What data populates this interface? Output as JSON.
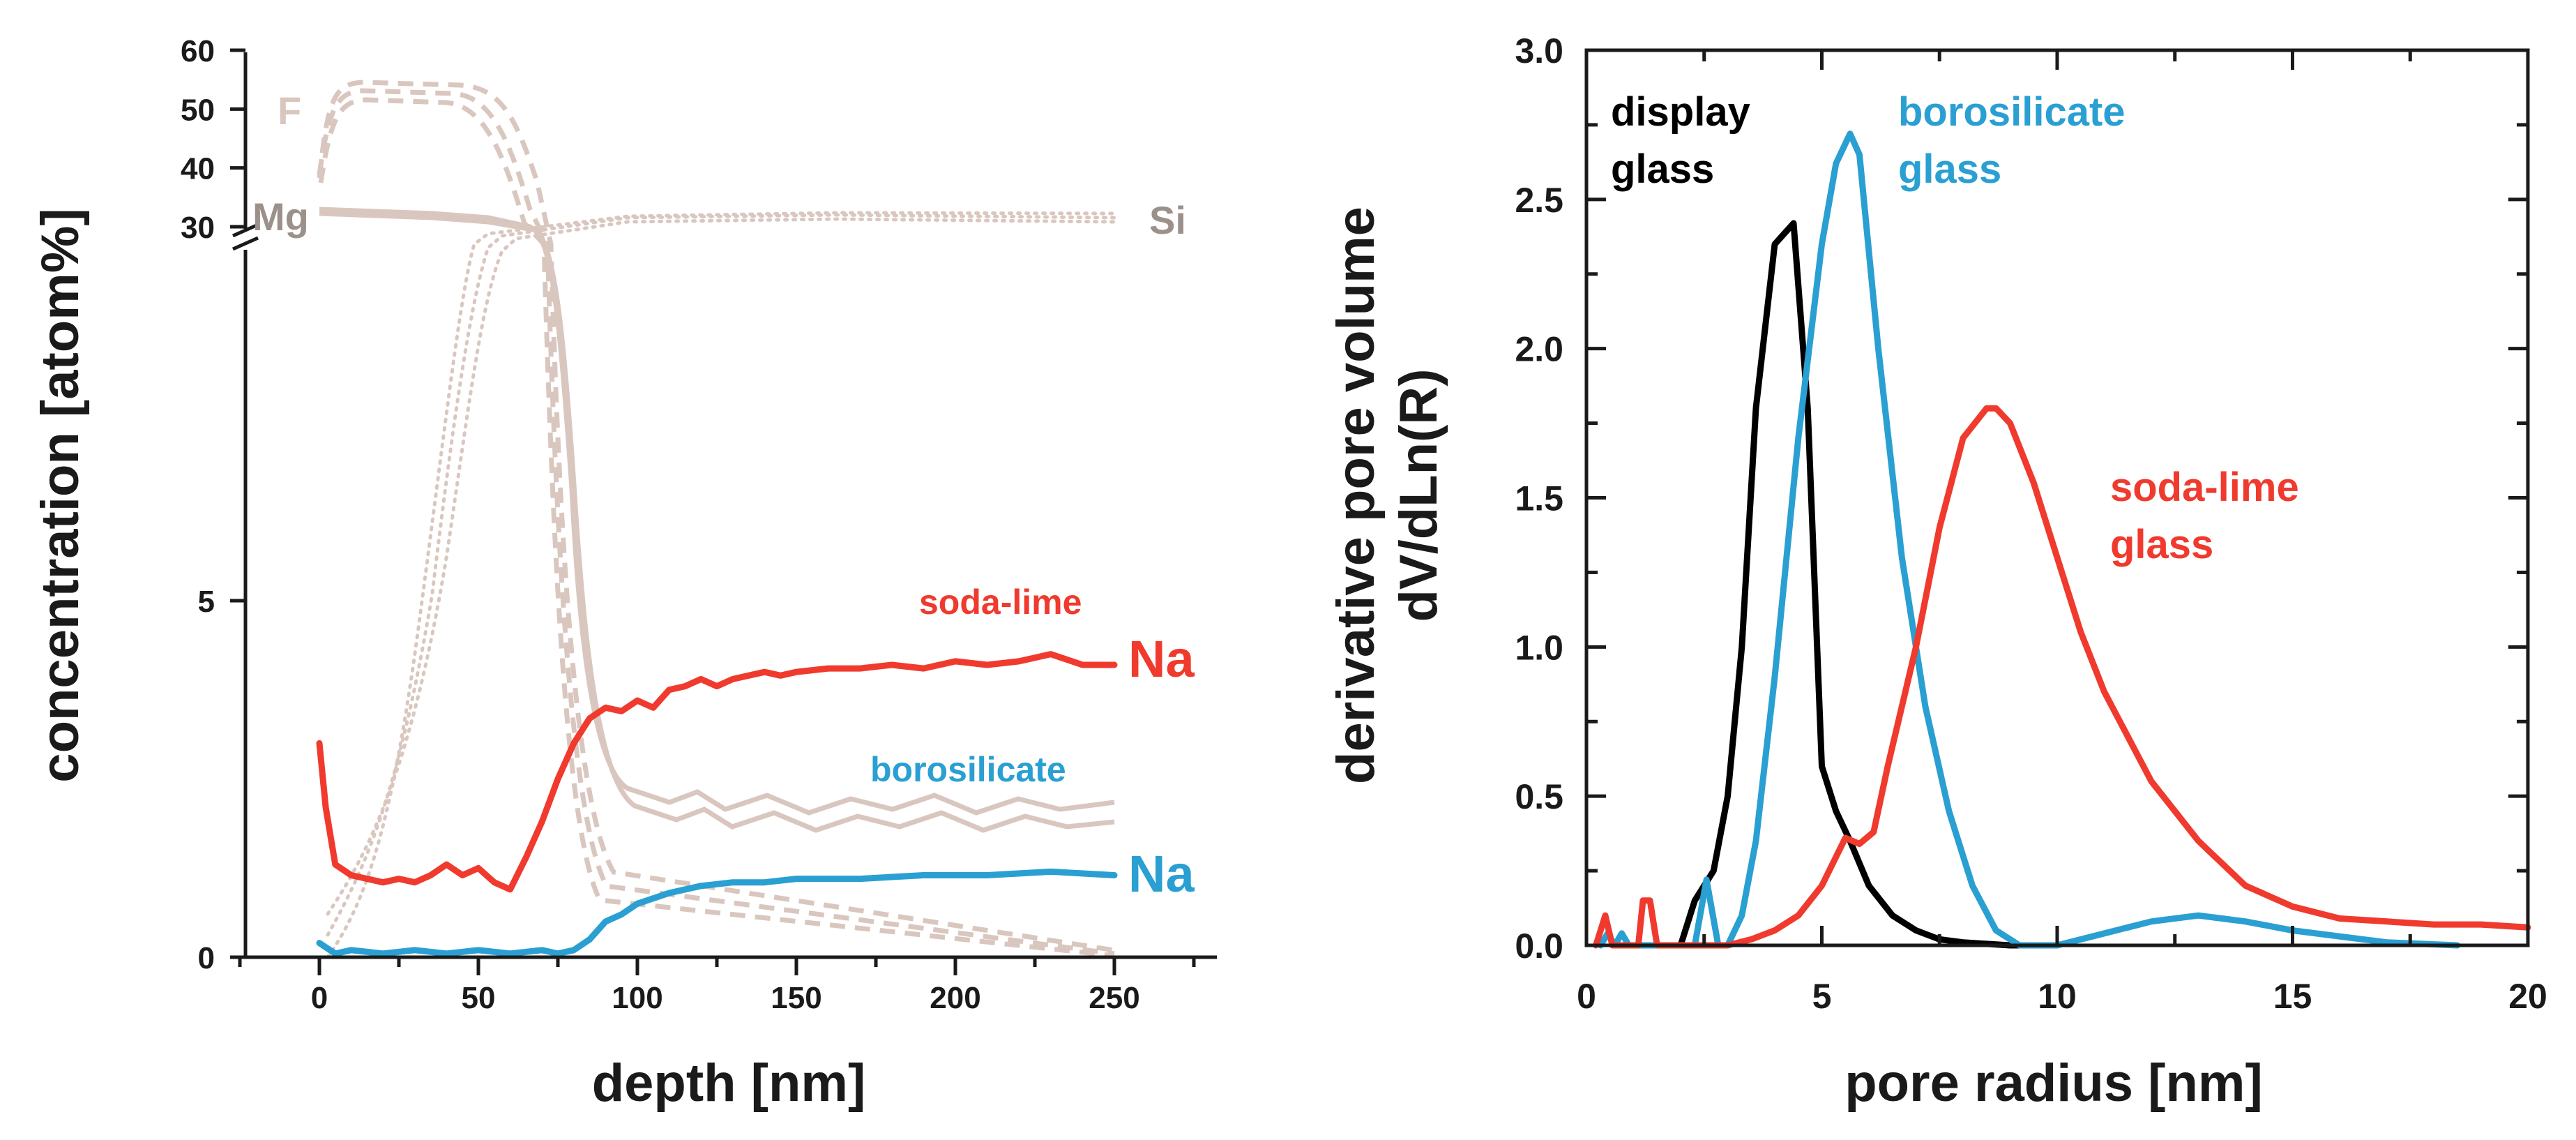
{
  "chart_data": [
    {
      "type": "line",
      "xlabel": "depth [nm]",
      "ylabel": "concentration [atom%]",
      "xlim": [
        -25,
        285
      ],
      "xticks": [
        "0",
        "50",
        "100",
        "150",
        "200",
        "250"
      ],
      "y_lower": {
        "range": [
          0,
          10
        ],
        "ticks": [
          "0",
          "5"
        ]
      },
      "y_upper": {
        "range": [
          27,
          60
        ],
        "ticks": [
          "30",
          "40",
          "50",
          "60"
        ]
      },
      "annotations": {
        "f": "F",
        "mg": "Mg",
        "si": "Si",
        "soda_lime": "soda-lime",
        "na_soda": "Na",
        "borosilicate": "borosilicate",
        "na_boro": "Na"
      },
      "colors": {
        "soda_lime": "#f03a2e",
        "borosilicate": "#2a9fd2",
        "background_profiles": "#d9c7bf",
        "labels": "#9c918a"
      },
      "series": [
        {
          "name": "soda-lime Na",
          "color": "#f03a2e",
          "x": [
            0,
            2,
            5,
            10,
            15,
            20,
            25,
            30,
            35,
            40,
            45,
            50,
            55,
            60,
            65,
            70,
            75,
            80,
            85,
            90,
            95,
            100,
            105,
            110,
            115,
            120,
            125,
            130,
            135,
            140,
            145,
            150,
            160,
            170,
            180,
            190,
            200,
            210,
            220,
            230,
            240,
            250
          ],
          "y": [
            3.0,
            2.1,
            1.3,
            1.15,
            1.1,
            1.05,
            1.1,
            1.05,
            1.15,
            1.3,
            1.15,
            1.25,
            1.05,
            0.95,
            1.4,
            1.9,
            2.5,
            3.0,
            3.35,
            3.5,
            3.45,
            3.6,
            3.5,
            3.75,
            3.8,
            3.9,
            3.8,
            3.9,
            3.95,
            4.0,
            3.95,
            4.0,
            4.05,
            4.05,
            4.1,
            4.05,
            4.15,
            4.1,
            4.15,
            4.25,
            4.1,
            4.1
          ]
        },
        {
          "name": "borosilicate Na",
          "color": "#2a9fd2",
          "x": [
            0,
            5,
            10,
            20,
            30,
            40,
            50,
            60,
            70,
            75,
            80,
            85,
            90,
            95,
            100,
            110,
            120,
            130,
            140,
            150,
            170,
            190,
            210,
            230,
            250
          ],
          "y": [
            0.2,
            0.05,
            0.1,
            0.05,
            0.1,
            0.05,
            0.1,
            0.05,
            0.1,
            0.05,
            0.1,
            0.25,
            0.5,
            0.6,
            0.75,
            0.9,
            1.0,
            1.05,
            1.05,
            1.1,
            1.1,
            1.15,
            1.15,
            1.2,
            1.15
          ]
        }
      ]
    },
    {
      "type": "line",
      "xlabel": "pore radius [nm]",
      "ylabel": [
        "derivative pore volume",
        "dV/dLn(R)"
      ],
      "xlim": [
        0,
        20
      ],
      "ylim": [
        0,
        3
      ],
      "xticks": [
        "0",
        "5",
        "10",
        "15",
        "20"
      ],
      "yticks": [
        "0.0",
        "0.5",
        "1.0",
        "1.5",
        "2.0",
        "2.5",
        "3.0"
      ],
      "annotations": {
        "display": [
          "display",
          "glass"
        ],
        "borosilicate": [
          "borosilicate",
          "glass"
        ],
        "soda_lime": [
          "soda-lime",
          "glass"
        ]
      },
      "series": [
        {
          "name": "display glass",
          "color": "#000000",
          "x": [
            2.0,
            2.3,
            2.7,
            3.0,
            3.3,
            3.6,
            4.0,
            4.4,
            4.7,
            5.0,
            5.3,
            5.6,
            6.0,
            6.5,
            7.0,
            7.5,
            8.0,
            9.0,
            10.0
          ],
          "y": [
            0.0,
            0.15,
            0.25,
            0.5,
            1.0,
            1.8,
            2.35,
            2.42,
            1.8,
            0.6,
            0.45,
            0.35,
            0.2,
            0.1,
            0.05,
            0.02,
            0.01,
            0.0,
            0.0
          ]
        },
        {
          "name": "borosilicate glass",
          "color": "#2a9fd2",
          "x": [
            0.3,
            0.45,
            0.6,
            0.75,
            0.9,
            2.3,
            2.55,
            2.8,
            3.0,
            3.3,
            3.6,
            4.0,
            4.5,
            5.0,
            5.3,
            5.6,
            5.8,
            6.2,
            6.7,
            7.2,
            7.7,
            8.2,
            8.7,
            9.2,
            10.0,
            11.0,
            12.0,
            13.0,
            14.0,
            15.0,
            16.0,
            17.0,
            18.5
          ],
          "y": [
            0.0,
            0.04,
            0.0,
            0.04,
            0.0,
            0.0,
            0.22,
            0.0,
            0.0,
            0.1,
            0.35,
            0.9,
            1.7,
            2.35,
            2.62,
            2.72,
            2.65,
            2.0,
            1.3,
            0.8,
            0.45,
            0.2,
            0.05,
            0.0,
            0.0,
            0.04,
            0.08,
            0.1,
            0.08,
            0.05,
            0.03,
            0.01,
            0.0
          ]
        },
        {
          "name": "soda-lime glass",
          "color": "#f03a2e",
          "x": [
            0.2,
            0.4,
            0.55,
            0.7,
            1.1,
            1.2,
            1.35,
            1.5,
            3.0,
            3.5,
            4.0,
            4.5,
            5.0,
            5.5,
            5.8,
            6.1,
            6.4,
            7.0,
            7.5,
            8.0,
            8.5,
            8.7,
            9.0,
            9.5,
            10.0,
            10.5,
            11.0,
            12.0,
            13.0,
            14.0,
            15.0,
            16.0,
            17.0,
            18.0,
            19.0,
            20.0
          ],
          "y": [
            0.0,
            0.1,
            0.0,
            0.0,
            0.0,
            0.15,
            0.15,
            0.0,
            0.0,
            0.02,
            0.05,
            0.1,
            0.2,
            0.36,
            0.34,
            0.38,
            0.6,
            1.0,
            1.4,
            1.7,
            1.8,
            1.8,
            1.75,
            1.55,
            1.3,
            1.05,
            0.85,
            0.55,
            0.35,
            0.2,
            0.13,
            0.09,
            0.08,
            0.07,
            0.07,
            0.06
          ]
        }
      ]
    }
  ]
}
